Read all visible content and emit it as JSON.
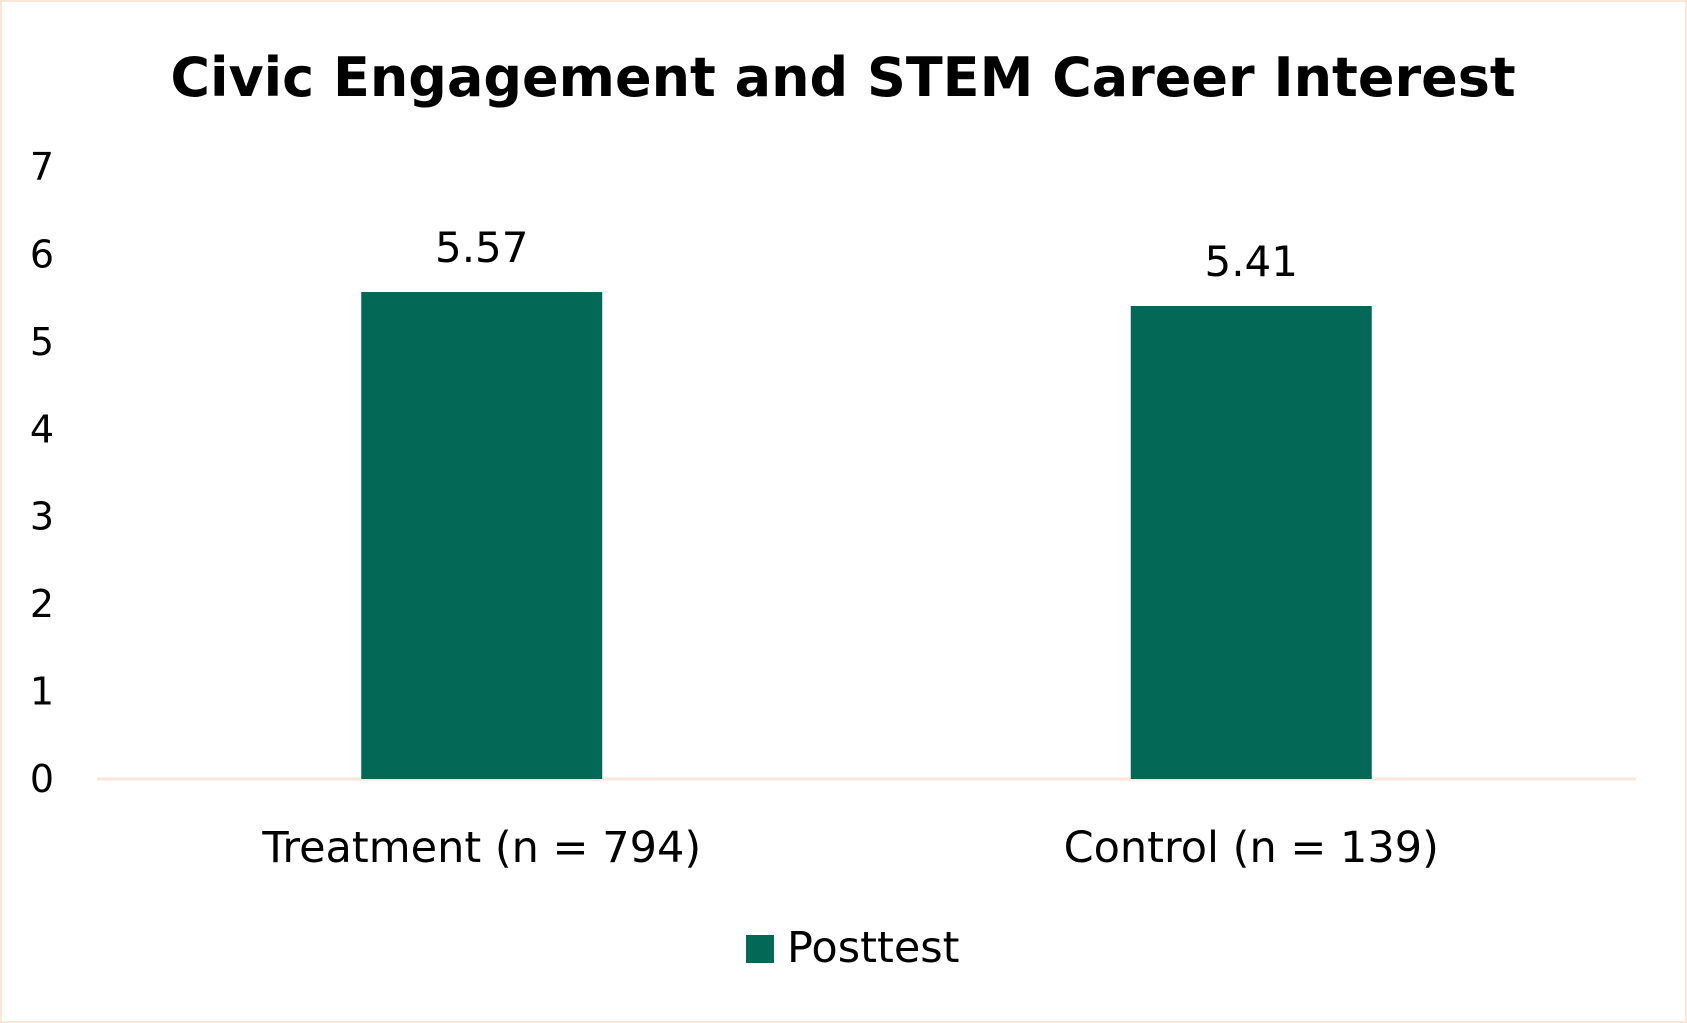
{
  "chart_data": {
    "type": "bar",
    "title": "Civic Engagement and STEM Career Interest",
    "xlabel": "",
    "ylabel": "",
    "categories": [
      "Treatment (n = 794)",
      "Control (n = 139)"
    ],
    "series": [
      {
        "name": "Posttest",
        "values": [
          5.57,
          5.41
        ],
        "data_labels": [
          "5.57",
          "5.41"
        ],
        "color": "#046856"
      }
    ],
    "ylim": [
      0,
      7
    ],
    "yticks": [
      "0",
      "1",
      "2",
      "3",
      "4",
      "5",
      "6",
      "7"
    ],
    "grid": false,
    "legend": "bottom",
    "axis_color": "#fbe6d8"
  }
}
